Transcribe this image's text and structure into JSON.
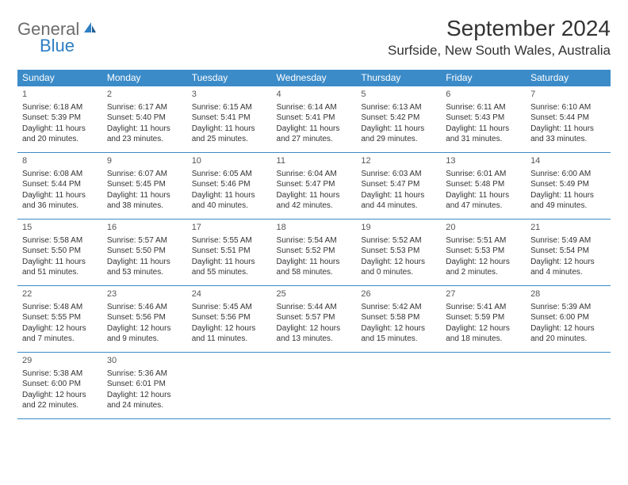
{
  "logo": {
    "word1": "General",
    "word2": "Blue"
  },
  "title": "September 2024",
  "location": "Surfside, New South Wales, Australia",
  "colors": {
    "header_bg": "#3b8bc8",
    "header_text": "#ffffff",
    "row_border": "#3b8bc8",
    "text": "#333333",
    "logo_gray": "#6c6c6c",
    "logo_blue": "#2d7fc4",
    "background": "#ffffff"
  },
  "typography": {
    "title_fontsize": 28,
    "location_fontsize": 17,
    "dayheader_fontsize": 12,
    "cell_fontsize": 10,
    "logo_fontsize": 22
  },
  "calendar": {
    "type": "table",
    "day_headers": [
      "Sunday",
      "Monday",
      "Tuesday",
      "Wednesday",
      "Thursday",
      "Friday",
      "Saturday"
    ],
    "weeks": [
      [
        {
          "day": "1",
          "sunrise": "Sunrise: 6:18 AM",
          "sunset": "Sunset: 5:39 PM",
          "daylight": "Daylight: 11 hours and 20 minutes."
        },
        {
          "day": "2",
          "sunrise": "Sunrise: 6:17 AM",
          "sunset": "Sunset: 5:40 PM",
          "daylight": "Daylight: 11 hours and 23 minutes."
        },
        {
          "day": "3",
          "sunrise": "Sunrise: 6:15 AM",
          "sunset": "Sunset: 5:41 PM",
          "daylight": "Daylight: 11 hours and 25 minutes."
        },
        {
          "day": "4",
          "sunrise": "Sunrise: 6:14 AM",
          "sunset": "Sunset: 5:41 PM",
          "daylight": "Daylight: 11 hours and 27 minutes."
        },
        {
          "day": "5",
          "sunrise": "Sunrise: 6:13 AM",
          "sunset": "Sunset: 5:42 PM",
          "daylight": "Daylight: 11 hours and 29 minutes."
        },
        {
          "day": "6",
          "sunrise": "Sunrise: 6:11 AM",
          "sunset": "Sunset: 5:43 PM",
          "daylight": "Daylight: 11 hours and 31 minutes."
        },
        {
          "day": "7",
          "sunrise": "Sunrise: 6:10 AM",
          "sunset": "Sunset: 5:44 PM",
          "daylight": "Daylight: 11 hours and 33 minutes."
        }
      ],
      [
        {
          "day": "8",
          "sunrise": "Sunrise: 6:08 AM",
          "sunset": "Sunset: 5:44 PM",
          "daylight": "Daylight: 11 hours and 36 minutes."
        },
        {
          "day": "9",
          "sunrise": "Sunrise: 6:07 AM",
          "sunset": "Sunset: 5:45 PM",
          "daylight": "Daylight: 11 hours and 38 minutes."
        },
        {
          "day": "10",
          "sunrise": "Sunrise: 6:05 AM",
          "sunset": "Sunset: 5:46 PM",
          "daylight": "Daylight: 11 hours and 40 minutes."
        },
        {
          "day": "11",
          "sunrise": "Sunrise: 6:04 AM",
          "sunset": "Sunset: 5:47 PM",
          "daylight": "Daylight: 11 hours and 42 minutes."
        },
        {
          "day": "12",
          "sunrise": "Sunrise: 6:03 AM",
          "sunset": "Sunset: 5:47 PM",
          "daylight": "Daylight: 11 hours and 44 minutes."
        },
        {
          "day": "13",
          "sunrise": "Sunrise: 6:01 AM",
          "sunset": "Sunset: 5:48 PM",
          "daylight": "Daylight: 11 hours and 47 minutes."
        },
        {
          "day": "14",
          "sunrise": "Sunrise: 6:00 AM",
          "sunset": "Sunset: 5:49 PM",
          "daylight": "Daylight: 11 hours and 49 minutes."
        }
      ],
      [
        {
          "day": "15",
          "sunrise": "Sunrise: 5:58 AM",
          "sunset": "Sunset: 5:50 PM",
          "daylight": "Daylight: 11 hours and 51 minutes."
        },
        {
          "day": "16",
          "sunrise": "Sunrise: 5:57 AM",
          "sunset": "Sunset: 5:50 PM",
          "daylight": "Daylight: 11 hours and 53 minutes."
        },
        {
          "day": "17",
          "sunrise": "Sunrise: 5:55 AM",
          "sunset": "Sunset: 5:51 PM",
          "daylight": "Daylight: 11 hours and 55 minutes."
        },
        {
          "day": "18",
          "sunrise": "Sunrise: 5:54 AM",
          "sunset": "Sunset: 5:52 PM",
          "daylight": "Daylight: 11 hours and 58 minutes."
        },
        {
          "day": "19",
          "sunrise": "Sunrise: 5:52 AM",
          "sunset": "Sunset: 5:53 PM",
          "daylight": "Daylight: 12 hours and 0 minutes."
        },
        {
          "day": "20",
          "sunrise": "Sunrise: 5:51 AM",
          "sunset": "Sunset: 5:53 PM",
          "daylight": "Daylight: 12 hours and 2 minutes."
        },
        {
          "day": "21",
          "sunrise": "Sunrise: 5:49 AM",
          "sunset": "Sunset: 5:54 PM",
          "daylight": "Daylight: 12 hours and 4 minutes."
        }
      ],
      [
        {
          "day": "22",
          "sunrise": "Sunrise: 5:48 AM",
          "sunset": "Sunset: 5:55 PM",
          "daylight": "Daylight: 12 hours and 7 minutes."
        },
        {
          "day": "23",
          "sunrise": "Sunrise: 5:46 AM",
          "sunset": "Sunset: 5:56 PM",
          "daylight": "Daylight: 12 hours and 9 minutes."
        },
        {
          "day": "24",
          "sunrise": "Sunrise: 5:45 AM",
          "sunset": "Sunset: 5:56 PM",
          "daylight": "Daylight: 12 hours and 11 minutes."
        },
        {
          "day": "25",
          "sunrise": "Sunrise: 5:44 AM",
          "sunset": "Sunset: 5:57 PM",
          "daylight": "Daylight: 12 hours and 13 minutes."
        },
        {
          "day": "26",
          "sunrise": "Sunrise: 5:42 AM",
          "sunset": "Sunset: 5:58 PM",
          "daylight": "Daylight: 12 hours and 15 minutes."
        },
        {
          "day": "27",
          "sunrise": "Sunrise: 5:41 AM",
          "sunset": "Sunset: 5:59 PM",
          "daylight": "Daylight: 12 hours and 18 minutes."
        },
        {
          "day": "28",
          "sunrise": "Sunrise: 5:39 AM",
          "sunset": "Sunset: 6:00 PM",
          "daylight": "Daylight: 12 hours and 20 minutes."
        }
      ],
      [
        {
          "day": "29",
          "sunrise": "Sunrise: 5:38 AM",
          "sunset": "Sunset: 6:00 PM",
          "daylight": "Daylight: 12 hours and 22 minutes."
        },
        {
          "day": "30",
          "sunrise": "Sunrise: 5:36 AM",
          "sunset": "Sunset: 6:01 PM",
          "daylight": "Daylight: 12 hours and 24 minutes."
        },
        null,
        null,
        null,
        null,
        null
      ]
    ]
  }
}
